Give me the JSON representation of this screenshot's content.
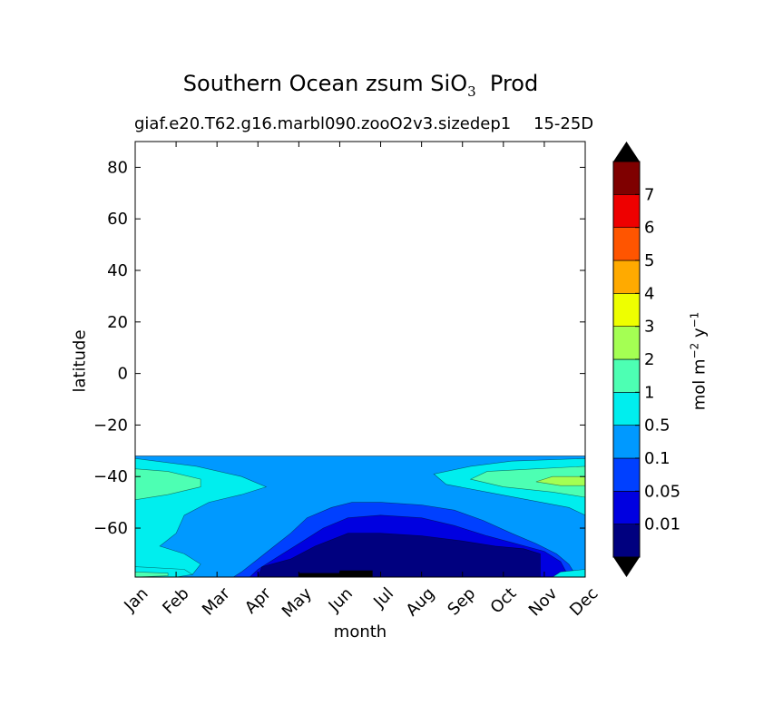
{
  "chart_data": {
    "type": "heatmap",
    "title_main": "Southern Ocean zsum SiO",
    "title_sub_script": "3",
    "title_end": "Prod",
    "subtitle": "giaf.e20.T62.g16.marbl090.zooO2v3.sizedep1",
    "subtitle_overlap": "15-25D",
    "xlabel": "month",
    "ylabel": "latitude",
    "colorbar_label_main": "mol m",
    "colorbar_label_exp1": "−2",
    "colorbar_label_mid": " y",
    "colorbar_label_exp2": "−1",
    "x_categories": [
      "Jan",
      "Feb",
      "Mar",
      "Apr",
      "May",
      "Jun",
      "Jul",
      "Aug",
      "Sep",
      "Oct",
      "Nov",
      "Dec"
    ],
    "ylim": [
      -79,
      90
    ],
    "yticks": [
      80,
      60,
      40,
      20,
      0,
      -20,
      -40,
      -60
    ],
    "ytick_labels": [
      "80",
      "60",
      "40",
      "20",
      "0",
      "−20",
      "−40",
      "−60"
    ],
    "data_lat_max": -32,
    "levels": [
      0,
      0.01,
      0.05,
      0.1,
      0.5,
      1,
      2,
      3,
      4,
      5,
      6,
      7,
      8
    ],
    "level_labels": [
      "0.01",
      "0.05",
      "0.1",
      "0.5",
      "1",
      "2",
      "3",
      "4",
      "5",
      "6",
      "7"
    ],
    "colors": [
      "#00007f",
      "#0000e0",
      "#0040ff",
      "#0099ff",
      "#00eeee",
      "#4dffb3",
      "#a4ff53",
      "#eeff00",
      "#ffaa00",
      "#ff5500",
      "#ee0000",
      "#7f0000"
    ],
    "under_color": "#000000",
    "over_color": "#000000",
    "region_contours": [
      {
        "level": "0.1",
        "color": "#0099ff",
        "lower": [
          [
            0,
            -32
          ],
          [
            11,
            -32
          ]
        ],
        "note": "base fill from -32 to -79"
      },
      {
        "level": "0.05",
        "color": "#0040ff",
        "points": [
          [
            2.4,
            -79
          ],
          [
            2.6,
            -77
          ],
          [
            3.0,
            -72
          ],
          [
            3.4,
            -67
          ],
          [
            3.8,
            -62
          ],
          [
            4.2,
            -56
          ],
          [
            4.8,
            -52
          ],
          [
            5.3,
            -50
          ],
          [
            6.0,
            -50
          ],
          [
            7.0,
            -51
          ],
          [
            7.8,
            -53
          ],
          [
            8.5,
            -57
          ],
          [
            9.2,
            -62
          ],
          [
            9.8,
            -66
          ],
          [
            10.3,
            -70
          ],
          [
            10.6,
            -74
          ],
          [
            10.8,
            -79
          ]
        ]
      },
      {
        "level": "0.01",
        "color": "#0000e0",
        "points": [
          [
            2.8,
            -79
          ],
          [
            3.0,
            -76
          ],
          [
            3.5,
            -71
          ],
          [
            4.0,
            -66
          ],
          [
            4.6,
            -60
          ],
          [
            5.2,
            -56
          ],
          [
            6.0,
            -55
          ],
          [
            7.0,
            -56
          ],
          [
            7.8,
            -59
          ],
          [
            8.6,
            -63
          ],
          [
            9.3,
            -66
          ],
          [
            10.0,
            -69
          ],
          [
            10.4,
            -73
          ],
          [
            10.6,
            -79
          ]
        ]
      },
      {
        "level": "0",
        "color": "#00007f",
        "points": [
          [
            3.0,
            -79
          ],
          [
            3.1,
            -75
          ],
          [
            3.8,
            -72
          ],
          [
            4.4,
            -67
          ],
          [
            5.2,
            -62
          ],
          [
            6.0,
            -62
          ],
          [
            7.0,
            -63
          ],
          [
            8.0,
            -65
          ],
          [
            8.8,
            -67
          ],
          [
            9.5,
            -68
          ],
          [
            9.9,
            -70
          ],
          [
            9.9,
            -79
          ]
        ]
      },
      {
        "level": "under",
        "color": "#000000",
        "points": [
          [
            4.0,
            -79
          ],
          [
            4.0,
            -77.5
          ],
          [
            5.0,
            -77.5
          ],
          [
            5.0,
            -76.5
          ],
          [
            5.8,
            -76.5
          ],
          [
            5.8,
            -79
          ]
        ]
      },
      {
        "level": "0.5",
        "color": "#00eeee",
        "points": [
          [
            0,
            -33
          ],
          [
            1.5,
            -36
          ],
          [
            2.6,
            -40
          ],
          [
            3.2,
            -44
          ],
          [
            2.6,
            -47
          ],
          [
            1.8,
            -50
          ],
          [
            1.2,
            -55
          ],
          [
            1.0,
            -62
          ],
          [
            0.6,
            -67
          ],
          [
            1.2,
            -70
          ],
          [
            1.6,
            -74
          ],
          [
            1.4,
            -78
          ],
          [
            0,
            -79
          ]
        ]
      },
      {
        "level": "1",
        "color": "#4dffb3",
        "points": [
          [
            0,
            -37
          ],
          [
            0.8,
            -38
          ],
          [
            1.6,
            -41
          ],
          [
            1.6,
            -44
          ],
          [
            0.8,
            -47
          ],
          [
            0,
            -49
          ]
        ]
      },
      {
        "level": "0.5",
        "color": "#00eeee",
        "points": [
          [
            11,
            -33
          ],
          [
            9.2,
            -34
          ],
          [
            8.2,
            -36
          ],
          [
            7.3,
            -39
          ],
          [
            7.6,
            -43
          ],
          [
            8.6,
            -46
          ],
          [
            9.6,
            -49
          ],
          [
            10.6,
            -52
          ],
          [
            11,
            -55
          ]
        ]
      },
      {
        "level": "1",
        "color": "#4dffb3",
        "points": [
          [
            11,
            -36
          ],
          [
            9.8,
            -37
          ],
          [
            8.6,
            -38
          ],
          [
            8.2,
            -41
          ],
          [
            9.0,
            -44
          ],
          [
            10.2,
            -46
          ],
          [
            11,
            -48
          ]
        ]
      },
      {
        "level": "2",
        "color": "#a4ff53",
        "points": [
          [
            11,
            -40
          ],
          [
            10.2,
            -40
          ],
          [
            9.8,
            -42
          ],
          [
            10.4,
            -43.5
          ],
          [
            11,
            -43.5
          ]
        ]
      },
      {
        "level": "0.5",
        "color": "#00eeee",
        "points": [
          [
            0,
            -75
          ],
          [
            1.2,
            -76
          ],
          [
            1.4,
            -78
          ],
          [
            1.0,
            -79
          ],
          [
            0,
            -79
          ]
        ]
      },
      {
        "level": "1",
        "color": "#4dffb3",
        "points": [
          [
            0,
            -77
          ],
          [
            0.8,
            -77.5
          ],
          [
            0.8,
            -78.5
          ],
          [
            0,
            -79
          ]
        ]
      },
      {
        "level": "0.5",
        "color": "#00eeee",
        "points": [
          [
            11,
            -76
          ],
          [
            10.4,
            -77
          ],
          [
            10.2,
            -79
          ],
          [
            11,
            -79
          ]
        ]
      }
    ]
  }
}
